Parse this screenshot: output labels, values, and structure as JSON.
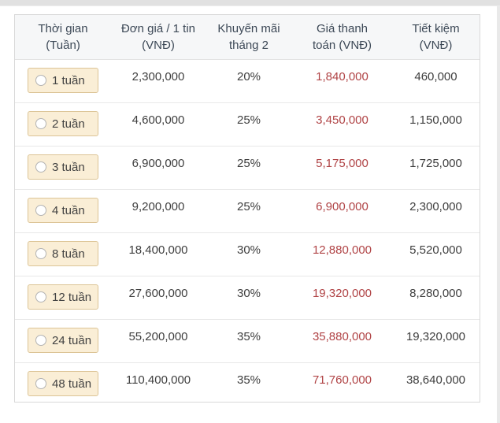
{
  "header": {
    "columns": [
      {
        "line1": "Thời gian",
        "line2": "(Tuần)"
      },
      {
        "line1": "Đơn giá / 1 tin",
        "line2": "(VNĐ)"
      },
      {
        "line1": "Khuyến mãi",
        "line2": "tháng 2"
      },
      {
        "line1": "Giá thanh",
        "line2": "toán (VNĐ)"
      },
      {
        "line1": "Tiết kiệm",
        "line2": "(VNĐ)"
      }
    ]
  },
  "rows": [
    {
      "duration": "1 tuần",
      "unit_price": "2,300,000",
      "promo": "20%",
      "pay_price": "1,840,000",
      "savings": "460,000",
      "selected": false
    },
    {
      "duration": "2 tuần",
      "unit_price": "4,600,000",
      "promo": "25%",
      "pay_price": "3,450,000",
      "savings": "1,150,000",
      "selected": false
    },
    {
      "duration": "3 tuần",
      "unit_price": "6,900,000",
      "promo": "25%",
      "pay_price": "5,175,000",
      "savings": "1,725,000",
      "selected": false
    },
    {
      "duration": "4 tuần",
      "unit_price": "9,200,000",
      "promo": "25%",
      "pay_price": "6,900,000",
      "savings": "2,300,000",
      "selected": false
    },
    {
      "duration": "8 tuần",
      "unit_price": "18,400,000",
      "promo": "30%",
      "pay_price": "12,880,000",
      "savings": "5,520,000",
      "selected": false
    },
    {
      "duration": "12 tuần",
      "unit_price": "27,600,000",
      "promo": "30%",
      "pay_price": "19,320,000",
      "savings": "8,280,000",
      "selected": false
    },
    {
      "duration": "24 tuần",
      "unit_price": "55,200,000",
      "promo": "35%",
      "pay_price": "35,880,000",
      "savings": "19,320,000",
      "selected": false
    },
    {
      "duration": "48 tuần",
      "unit_price": "110,400,000",
      "promo": "35%",
      "pay_price": "71,760,000",
      "savings": "38,640,000",
      "selected": false
    }
  ],
  "colors": {
    "pay_price_text": "#b04345",
    "header_text": "#3c4856",
    "header_bg": "#f6f7f8",
    "body_text": "#3e3e3e",
    "radio_box_bg": "#faeed6",
    "radio_box_border": "#dcc496",
    "row_divider": "#e8e8e8",
    "table_border": "#d9d9d9",
    "top_strip": "#e1e1e1"
  }
}
